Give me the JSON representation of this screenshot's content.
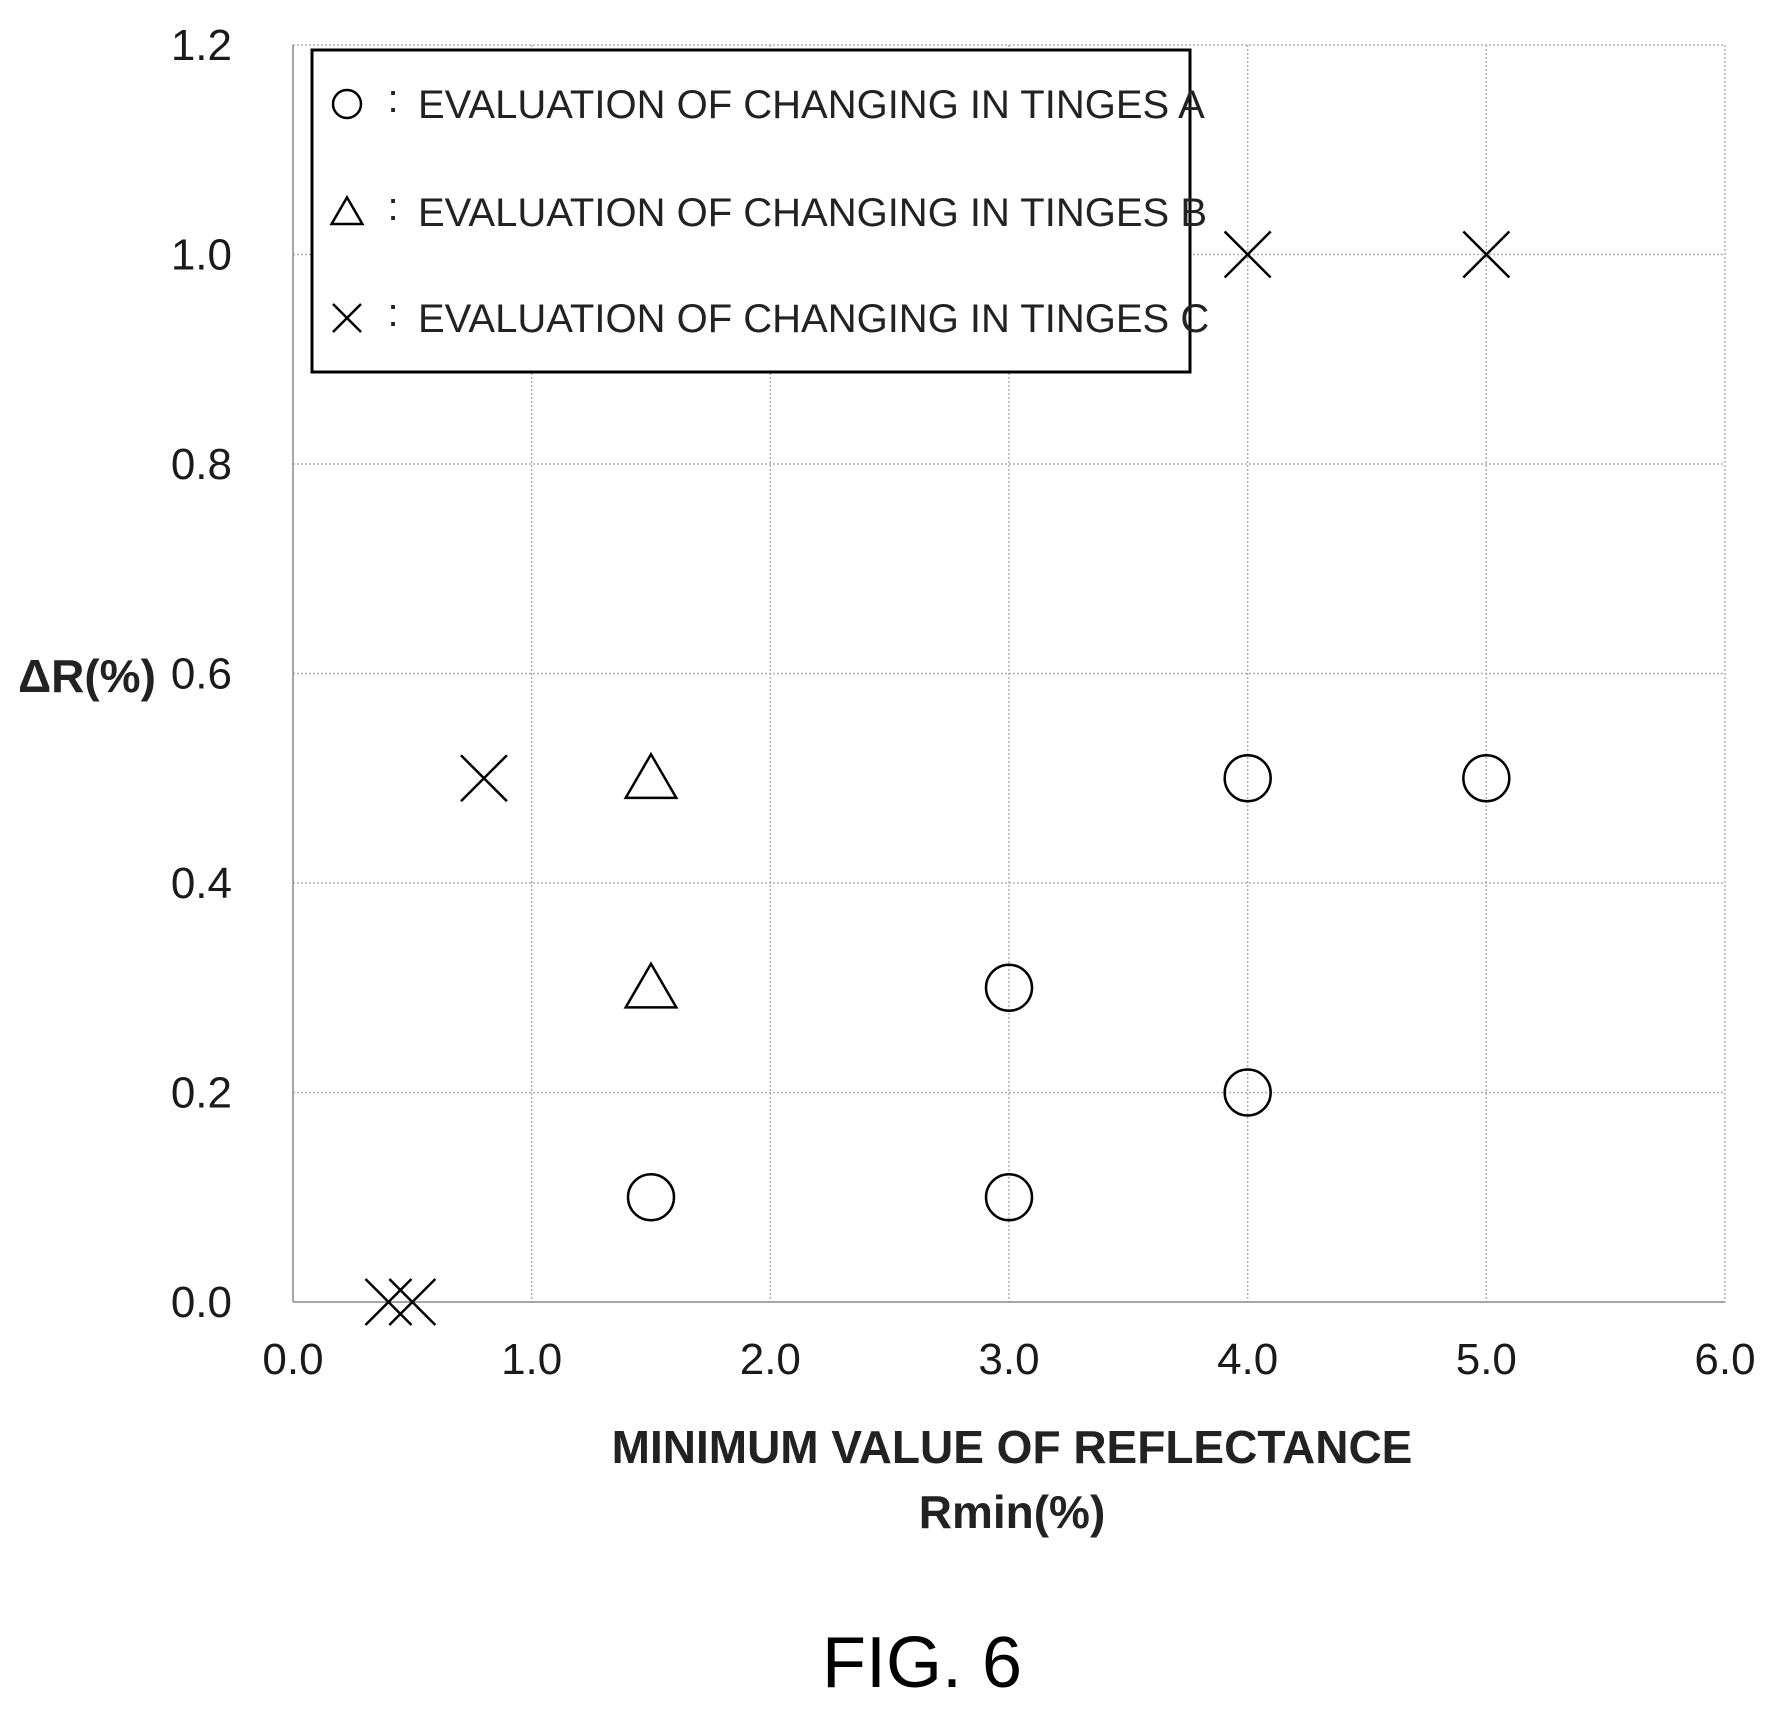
{
  "chart_data": {
    "type": "scatter",
    "xlabel_line1": "MINIMUM VALUE OF REFLECTANCE",
    "xlabel_line2": "Rmin(%)",
    "ylabel": "ΔR(%)",
    "xlim": [
      0.0,
      6.0
    ],
    "ylim": [
      0.0,
      1.2
    ],
    "x_ticks": [
      "0.0",
      "1.0",
      "2.0",
      "3.0",
      "4.0",
      "5.0",
      "6.0"
    ],
    "y_ticks": [
      "0.0",
      "0.2",
      "0.4",
      "0.6",
      "0.8",
      "1.0",
      "1.2"
    ],
    "grid": true,
    "legend_position": "top-left",
    "series": [
      {
        "name": "EVALUATION OF CHANGING IN TINGES A",
        "marker": "circle",
        "points": [
          [
            1.5,
            0.1
          ],
          [
            3.0,
            0.1
          ],
          [
            3.0,
            0.3
          ],
          [
            4.0,
            0.2
          ],
          [
            4.0,
            0.5
          ],
          [
            5.0,
            0.5
          ]
        ]
      },
      {
        "name": "EVALUATION OF CHANGING IN TINGES B",
        "marker": "triangle",
        "points": [
          [
            1.5,
            0.3
          ],
          [
            1.5,
            0.5
          ]
        ]
      },
      {
        "name": "EVALUATION OF CHANGING IN TINGES C",
        "marker": "cross",
        "points": [
          [
            0.4,
            0.0
          ],
          [
            0.5,
            0.0
          ],
          [
            0.8,
            0.5
          ],
          [
            4.0,
            1.0
          ],
          [
            5.0,
            1.0
          ]
        ]
      }
    ]
  },
  "legend": {
    "separator": ":",
    "items": [
      "EVALUATION OF CHANGING IN TINGES A",
      "EVALUATION OF CHANGING IN TINGES B",
      "EVALUATION OF CHANGING IN TINGES C"
    ]
  },
  "caption": "FIG. 6"
}
